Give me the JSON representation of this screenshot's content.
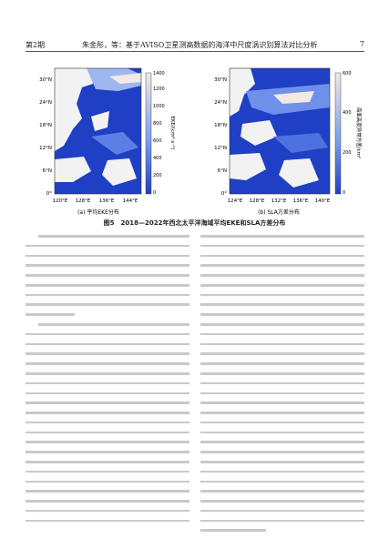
{
  "header": {
    "issue": "第2期",
    "running_title": "朱金彤，等：基于AVISO卫星测高数据的海洋中尺度涡识别算法对比分析",
    "page_number": "7"
  },
  "figure": {
    "caption": "图5　2018—2022年西北太平洋海域平均EKE和SLA方差分布",
    "panel_a": {
      "label": "(a) 平均EKE分布",
      "colorbar_label": "EKE/(cm²·s⁻²)",
      "colorbar_ticks": [
        "0",
        "200",
        "400",
        "600",
        "800",
        "1000",
        "1200",
        "1400"
      ],
      "lat_ticks": [
        "30°N",
        "24°N",
        "18°N",
        "12°N",
        "6°N",
        "0°"
      ],
      "lon_ticks": [
        "120°E",
        "128°E",
        "136°E",
        "144°E"
      ],
      "colors": {
        "ocean_low": "#1f3fc4",
        "ocean_mid": "#7ea0ee",
        "ocean_high": "#f3e9e4",
        "land": "#f2f2f2"
      }
    },
    "panel_b": {
      "label": "(b) SLA方差分布",
      "colorbar_label": "海面高度异常方差/cm²",
      "colorbar_ticks": [
        "0",
        "200",
        "400",
        "600"
      ],
      "lat_ticks": [
        "30°N",
        "24°N",
        "18°N",
        "12°N",
        "6°N",
        "0°"
      ],
      "lon_ticks": [
        "124°E",
        "128°E",
        "132°E",
        "136°E",
        "140°E"
      ],
      "colors": {
        "ocean_low": "#1f3fc4",
        "ocean_mid": "#7ea0ee",
        "ocean_high": "#f3e9e4",
        "land": "#f2f2f2"
      }
    }
  }
}
